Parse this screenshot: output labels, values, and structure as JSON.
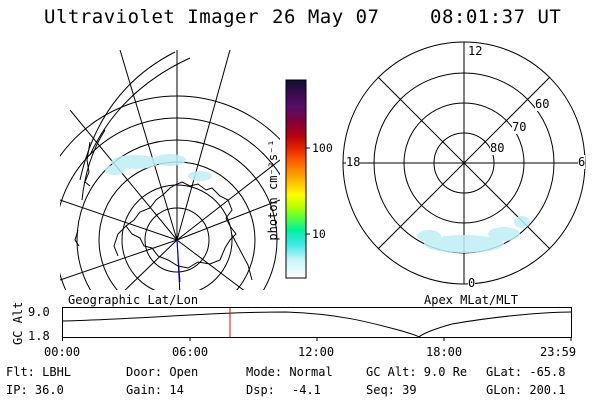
{
  "header": {
    "instrument": "Ultraviolet Imager",
    "date": "26 May 07",
    "time": "08:01:37 UT"
  },
  "colorbar": {
    "unit_label": "photon cm⁻²s⁻¹",
    "tick_labels": [
      "100",
      "10"
    ],
    "colors": [
      "#101030",
      "#3a0a52",
      "#5a0c68",
      "#80003c",
      "#b40010",
      "#e02000",
      "#ff5500",
      "#ff8c00",
      "#ffc200",
      "#ffff00",
      "#b8ff00",
      "#50ff40",
      "#00f0a0",
      "#40e8e8",
      "#c8f4f8",
      "#ffffff"
    ]
  },
  "maps": {
    "geo_label": "Geographic Lat/Lon",
    "apex_label": "Apex MLat/MLT",
    "apex_ticks": {
      "mlt": [
        "12",
        "18",
        "6",
        "0"
      ],
      "mlat": [
        "60",
        "70",
        "80"
      ]
    }
  },
  "alt_plot": {
    "ylabel": "GC Alt",
    "yticks": [
      "9.0",
      "1.8"
    ],
    "xticks": [
      "00:00",
      "06:00",
      "12:00",
      "18:00",
      "23:59"
    ],
    "marker_color": "#ff0000"
  },
  "info": {
    "filter": "Flt: LBHL",
    "ip": "IP: 36.0",
    "door": "Door: Open",
    "gain": "Gain: 14",
    "mode": "Mode: Normal",
    "dsp_label": "Dsp:",
    "dsp_value": "-4.1",
    "gc_alt": "GC Alt: 9.0 Re",
    "seq": "Seq: 39",
    "glat": "GLat: -65.8",
    "glon": "GLon: 200.1"
  }
}
